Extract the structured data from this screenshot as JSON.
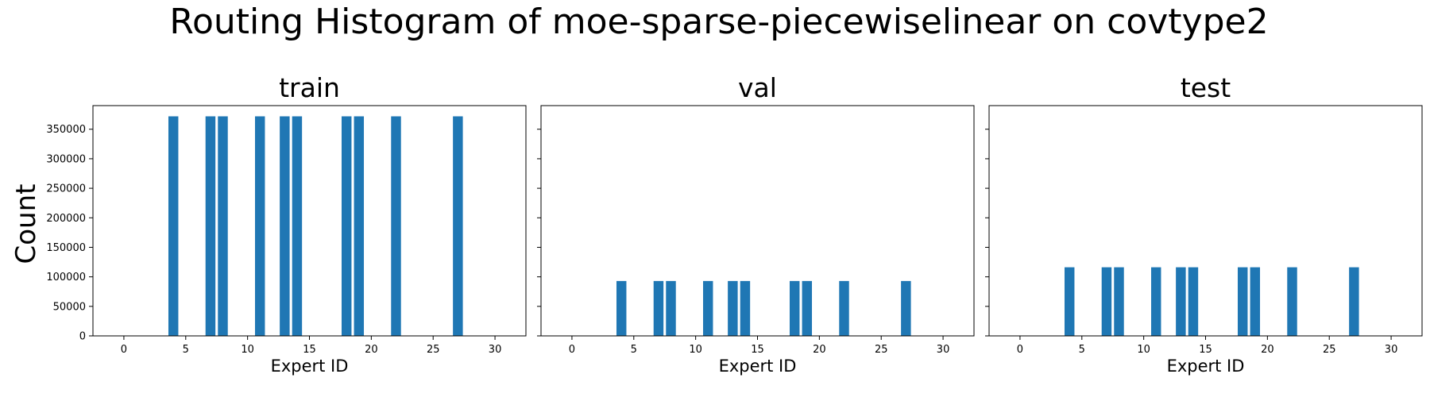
{
  "suptitle": "Routing Histogram of moe-sparse-piecewiselinear on covtype2",
  "ylabel": "Count",
  "colors": {
    "bar": "#1f77b4",
    "axis": "#000000",
    "background": "#ffffff"
  },
  "chart_data": [
    {
      "type": "bar",
      "title": "train",
      "xlabel": "Expert ID",
      "ylabel": "Count",
      "xlim": [
        -2.5,
        32.5
      ],
      "ylim": [
        0,
        390000
      ],
      "xticks": [
        0,
        5,
        10,
        15,
        20,
        25,
        30
      ],
      "yticks": [
        0,
        50000,
        100000,
        150000,
        200000,
        250000,
        300000,
        350000
      ],
      "grid": false,
      "x": [
        4,
        7,
        8,
        11,
        13,
        14,
        18,
        19,
        22,
        27
      ],
      "values": [
        371847,
        371847,
        371847,
        371847,
        371847,
        371847,
        371847,
        371847,
        371847,
        371847
      ]
    },
    {
      "type": "bar",
      "title": "val",
      "xlabel": "Expert ID",
      "ylabel": "Count",
      "xlim": [
        -2.5,
        32.5
      ],
      "ylim": [
        0,
        390000
      ],
      "xticks": [
        0,
        5,
        10,
        15,
        20,
        25,
        30
      ],
      "yticks": [
        0,
        50000,
        100000,
        150000,
        200000,
        250000,
        300000,
        350000
      ],
      "grid": false,
      "x": [
        4,
        7,
        8,
        11,
        13,
        14,
        18,
        19,
        22,
        27
      ],
      "values": [
        92962,
        92962,
        92962,
        92962,
        92962,
        92962,
        92962,
        92962,
        92962,
        92962
      ]
    },
    {
      "type": "bar",
      "title": "test",
      "xlabel": "Expert ID",
      "ylabel": "Count",
      "xlim": [
        -2.5,
        32.5
      ],
      "ylim": [
        0,
        390000
      ],
      "xticks": [
        0,
        5,
        10,
        15,
        20,
        25,
        30
      ],
      "yticks": [
        0,
        50000,
        100000,
        150000,
        200000,
        250000,
        300000,
        350000
      ],
      "grid": false,
      "x": [
        4,
        7,
        8,
        11,
        13,
        14,
        18,
        19,
        22,
        27
      ],
      "values": [
        116203,
        116203,
        116203,
        116203,
        116203,
        116203,
        116203,
        116203,
        116203,
        116203
      ]
    }
  ]
}
